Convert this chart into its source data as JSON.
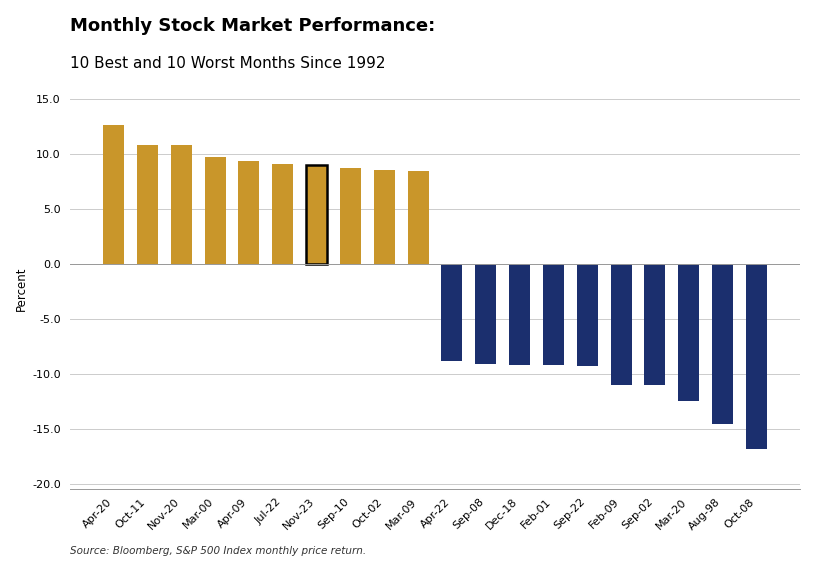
{
  "title_line1": "Monthly Stock Market Performance:",
  "title_line2": "10 Best and 10 Worst Months Since 1992",
  "source": "Source: Bloomberg, S&P 500 Index monthly price return.",
  "categories": [
    "Apr-20",
    "Oct-11",
    "Nov-20",
    "Mar-00",
    "Apr-09",
    "Jul-22",
    "Nov-23",
    "Sep-10",
    "Oct-02",
    "Mar-09",
    "Apr-22",
    "Sep-08",
    "Dec-18",
    "Feb-01",
    "Sep-22",
    "Feb-09",
    "Sep-02",
    "Mar-20",
    "Aug-98",
    "Oct-08"
  ],
  "values": [
    12.7,
    10.8,
    10.8,
    9.7,
    9.4,
    9.1,
    9.0,
    8.7,
    8.6,
    8.5,
    -8.8,
    -9.1,
    -9.2,
    -9.2,
    -9.3,
    -11.0,
    -11.0,
    -12.5,
    -14.6,
    -16.9
  ],
  "bar_colors": [
    "#C9962A",
    "#C9962A",
    "#C9962A",
    "#C9962A",
    "#C9962A",
    "#C9962A",
    "#C9962A",
    "#C9962A",
    "#C9962A",
    "#C9962A",
    "#1B2F6E",
    "#1B2F6E",
    "#1B2F6E",
    "#1B2F6E",
    "#1B2F6E",
    "#1B2F6E",
    "#1B2F6E",
    "#1B2F6E",
    "#1B2F6E",
    "#1B2F6E"
  ],
  "outlined_bar_index": 6,
  "outline_color": "#000000",
  "ylim": [
    -20.5,
    16.0
  ],
  "yticks": [
    -20.0,
    -15.0,
    -10.0,
    -5.0,
    0.0,
    5.0,
    10.0,
    15.0
  ],
  "ylabel": "Percent",
  "background_color": "#FFFFFF",
  "grid_color": "#CCCCCC",
  "title_fontsize": 13,
  "subtitle_fontsize": 11,
  "axis_label_fontsize": 8.5,
  "tick_fontsize": 8,
  "source_fontsize": 7.5
}
